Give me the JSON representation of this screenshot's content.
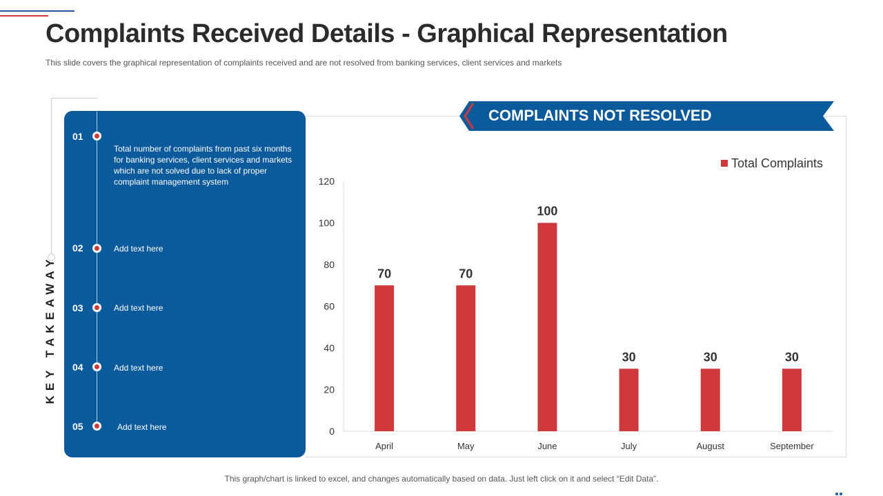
{
  "slide": {
    "title": "Complaints Received Details - Graphical Representation",
    "subtitle": "This slide covers the graphical representation of complaints received and are not resolved from banking services, client services and markets",
    "footer": "This graph/chart is linked to excel, and changes automatically based on data. Just left click on it and select “Edit Data”."
  },
  "takeaway": {
    "label": "KEY TAKEAWAY",
    "items": [
      {
        "number": "01",
        "text": "Total number of complaints from past six months for banking services, client services and markets which are not solved due to lack of proper complaint management system"
      },
      {
        "number": "02",
        "text": "Add text here"
      },
      {
        "number": "03",
        "text": "Add text here"
      },
      {
        "number": "04",
        "text": "Add text here"
      },
      {
        "number": "05",
        "text": "Add text here"
      }
    ]
  },
  "banner": {
    "label": "COMPLAINTS NOT RESOLVED"
  },
  "colors": {
    "primary_blue": "#0b5a9c",
    "accent_red": "#d0393b"
  },
  "chart_data": {
    "type": "bar",
    "categories": [
      "April",
      "May",
      "June",
      "July",
      "August",
      "September"
    ],
    "series": [
      {
        "name": "Total Complaints",
        "values": [
          70,
          70,
          100,
          30,
          30,
          30
        ],
        "color": "#d0393b"
      }
    ],
    "yticks": [
      0,
      20,
      40,
      60,
      80,
      100,
      120
    ],
    "ylim": [
      0,
      120
    ],
    "data_labels": true,
    "legend_position": "top-right",
    "grid": false
  }
}
